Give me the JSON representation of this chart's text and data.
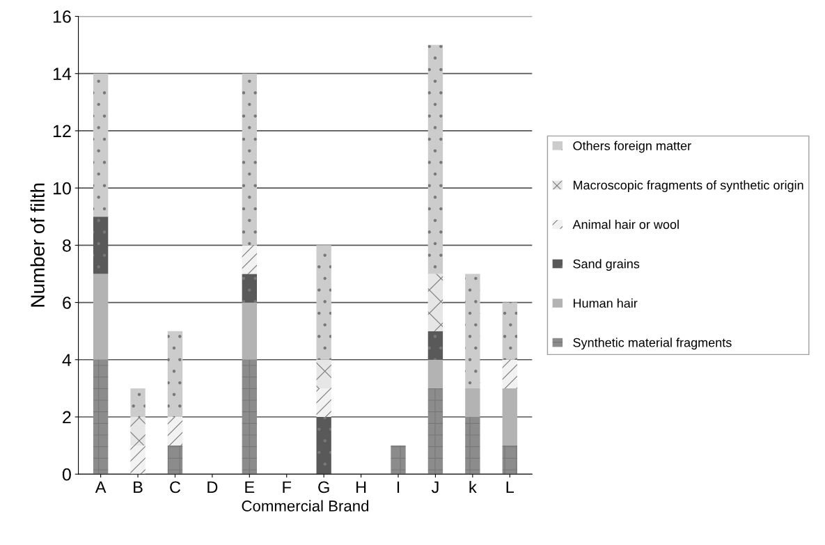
{
  "chart_data": {
    "type": "bar",
    "stacked": true,
    "xlabel": "Commercial Brand",
    "ylabel": "Number of filth",
    "categories": [
      "A",
      "B",
      "C",
      "D",
      "E",
      "F",
      "G",
      "H",
      "I",
      "J",
      "k",
      "L"
    ],
    "series": [
      {
        "name": "Synthetic material fragments",
        "color": "#8c8c8c",
        "values": [
          4,
          0,
          1,
          0,
          4,
          0,
          0,
          0,
          1,
          3,
          2,
          1
        ]
      },
      {
        "name": "Human hair",
        "color": "#b3b3b3",
        "values": [
          3,
          0,
          0,
          0,
          2,
          0,
          0,
          0,
          0,
          1,
          1,
          2
        ]
      },
      {
        "name": "Sand grains",
        "color": "#595959",
        "values": [
          2,
          0,
          0,
          0,
          1,
          0,
          2,
          0,
          0,
          1,
          0,
          0
        ]
      },
      {
        "name": "Animal hair or wool",
        "color": "#f2f2f2",
        "values": [
          0,
          1,
          1,
          0,
          1,
          0,
          1,
          0,
          0,
          0,
          0,
          1
        ]
      },
      {
        "name": "Macroscopic fragments of synthetic origin",
        "color": "#e6e6e6",
        "values": [
          0,
          1,
          0,
          0,
          0,
          0,
          1,
          0,
          0,
          2,
          0,
          0
        ]
      },
      {
        "name": "Others foreign matter",
        "color": "#cccccc",
        "values": [
          5,
          1,
          3,
          0,
          6,
          0,
          4,
          0,
          0,
          8,
          4,
          2
        ]
      }
    ],
    "ylim": [
      0,
      16
    ],
    "yticks": [
      0,
      2,
      4,
      6,
      8,
      10,
      12,
      14,
      16
    ],
    "grid": "y",
    "legend": "right"
  }
}
